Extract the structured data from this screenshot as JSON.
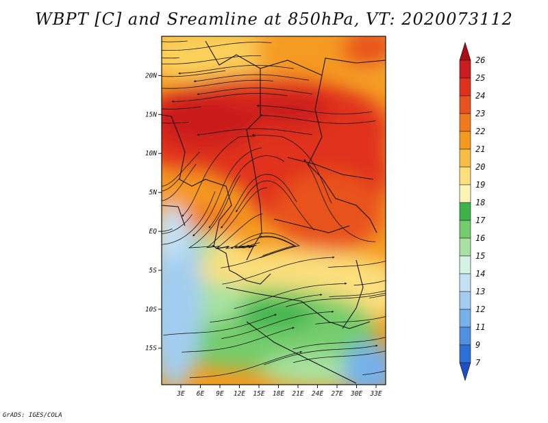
{
  "title": "WBPT [C] and Sreamline at 850hPa, VT: 2020073112",
  "credit": "GrADS: IGES/COLA",
  "lat_labels": [
    {
      "text": "20N",
      "lat": 20
    },
    {
      "text": "15N",
      "lat": 15
    },
    {
      "text": "10N",
      "lat": 10
    },
    {
      "text": "5N",
      "lat": 5
    },
    {
      "text": "EQ",
      "lat": 0
    },
    {
      "text": "5S",
      "lat": -5
    },
    {
      "text": "10S",
      "lat": -10
    },
    {
      "text": "15S",
      "lat": -15
    }
  ],
  "lon_labels": [
    {
      "text": "3E",
      "lon": 3
    },
    {
      "text": "6E",
      "lon": 6
    },
    {
      "text": "9E",
      "lon": 9
    },
    {
      "text": "12E",
      "lon": 12
    },
    {
      "text": "15E",
      "lon": 15
    },
    {
      "text": "18E",
      "lon": 18
    },
    {
      "text": "21E",
      "lon": 21
    },
    {
      "text": "24E",
      "lon": 24
    },
    {
      "text": "27E",
      "lon": 27
    },
    {
      "text": "30E",
      "lon": 30
    },
    {
      "text": "33E",
      "lon": 33
    }
  ],
  "colorbar": {
    "labels": [
      "26",
      "25",
      "24",
      "23",
      "22",
      "21",
      "20",
      "19",
      "18",
      "17",
      "16",
      "15",
      "14",
      "13",
      "12",
      "11",
      "9",
      "7"
    ],
    "colors": [
      "#a50f15",
      "#cb1d1d",
      "#e0301e",
      "#e8521e",
      "#f07a1a",
      "#f59a20",
      "#f8bd45",
      "#fbdf7d",
      "#fbf4b5",
      "#3cb44b",
      "#74cc6c",
      "#a8e2a0",
      "#d6f2e7",
      "#c5e2f5",
      "#a2cdf0",
      "#76b1ea",
      "#4f91e0",
      "#2c6fd6",
      "#1e4fc4"
    ]
  }
}
